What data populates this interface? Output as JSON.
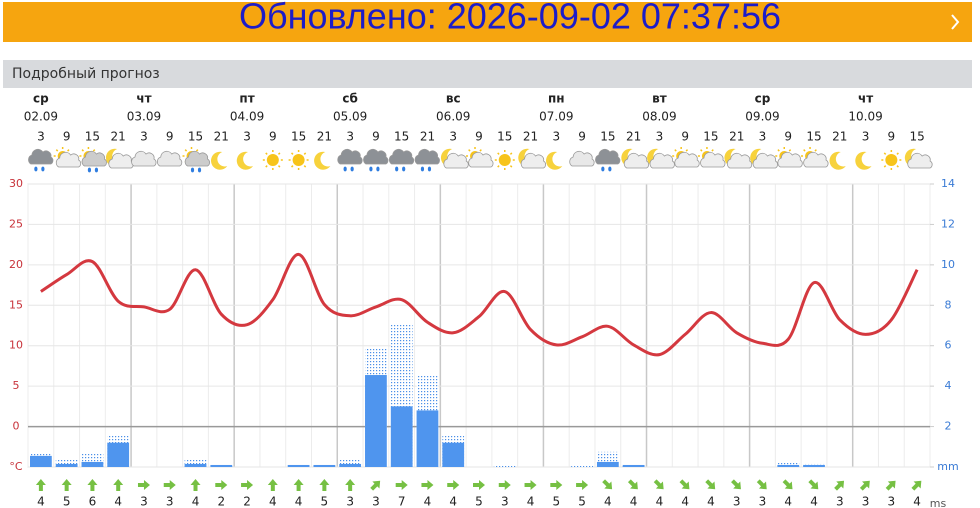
{
  "header": {
    "updated": "Обновлено: 2026-09-02 07:37:56",
    "section": "Подробный прогноз"
  },
  "chart_data": {
    "type": "line",
    "days": [
      {
        "name": "ср",
        "date": "02.09"
      },
      {
        "name": "чт",
        "date": "03.09"
      },
      {
        "name": "пт",
        "date": "04.09"
      },
      {
        "name": "сб",
        "date": "05.09"
      },
      {
        "name": "вс",
        "date": "06.09"
      },
      {
        "name": "пн",
        "date": "07.09"
      },
      {
        "name": "вт",
        "date": "08.09"
      },
      {
        "name": "ср",
        "date": "09.09"
      },
      {
        "name": "чт",
        "date": "10.09"
      }
    ],
    "categories": [
      "3",
      "9",
      "15",
      "21",
      "3",
      "9",
      "15",
      "21",
      "3",
      "9",
      "15",
      "21",
      "3",
      "9",
      "15",
      "21",
      "3",
      "9",
      "15",
      "21",
      "3",
      "9",
      "15",
      "21",
      "3",
      "9",
      "15",
      "21",
      "3",
      "9",
      "15",
      "21",
      "3",
      "9",
      "15"
    ],
    "series": [
      {
        "color": "#d4383f",
        "values": [
          16.7,
          18.8,
          20.4,
          15.5,
          14.8,
          14.5,
          19.4,
          13.9,
          12.6,
          15.7,
          21.3,
          15.1,
          13.7,
          14.8,
          15.7,
          12.9,
          11.6,
          13.6,
          16.7,
          12,
          10.1,
          11.1,
          12.4,
          10.1,
          8.9,
          11.4,
          14.1,
          11.6,
          10.3,
          10.8,
          17.8,
          13.2,
          11.4,
          13.2,
          19.4
        ]
      },
      {
        "color": "#4f95ee",
        "axis": "y2",
        "values": [
          0.55,
          0.15,
          0.25,
          1.2,
          0,
          0,
          0.15,
          0.1,
          0,
          0,
          0.1,
          0.1,
          0.15,
          4.55,
          3.0,
          2.8,
          1.2,
          0,
          0,
          0,
          0,
          0,
          0.25,
          0.1,
          0,
          0,
          0,
          0,
          0,
          0.1,
          0.1,
          0,
          0,
          0,
          0
        ]
      },
      {
        "color": "#4a8fe8",
        "axis": "y2",
        "values": [
          0.7,
          0.4,
          0.7,
          1.6,
          0,
          0,
          0.4,
          0.1,
          0,
          0,
          0.1,
          0.1,
          0.4,
          5.9,
          7.1,
          4.55,
          1.6,
          0,
          0.1,
          0,
          0,
          0.1,
          0.75,
          0.1,
          0,
          0,
          0,
          0,
          0,
          0.25,
          0.15,
          0,
          0,
          0,
          0
        ]
      }
    ],
    "ylim": [
      -5,
      30
    ],
    "yticks": [
      {
        "value": -5,
        "label": "°C"
      },
      0,
      5,
      10,
      15,
      20,
      25,
      30
    ],
    "y2lim": [
      0,
      14
    ],
    "y2ticks": [
      {
        "value": 0,
        "label": "mm"
      },
      2,
      4,
      6,
      8,
      10,
      12,
      14
    ],
    "grid": true,
    "wind": {
      "unit": "ms",
      "values": [
        4,
        5,
        6,
        4,
        3,
        3,
        4,
        2,
        2,
        4,
        4,
        5,
        3,
        3,
        7,
        4,
        4,
        5,
        3,
        4,
        5,
        5,
        4,
        4,
        4,
        4,
        4,
        3,
        3,
        4,
        4,
        3,
        3,
        3,
        4
      ],
      "directions": [
        0,
        0,
        0,
        0,
        90,
        90,
        0,
        90,
        90,
        0,
        0,
        0,
        0,
        45,
        90,
        90,
        90,
        90,
        90,
        90,
        90,
        90,
        135,
        135,
        135,
        135,
        135,
        135,
        135,
        135,
        135,
        45,
        45,
        45,
        45
      ]
    }
  }
}
